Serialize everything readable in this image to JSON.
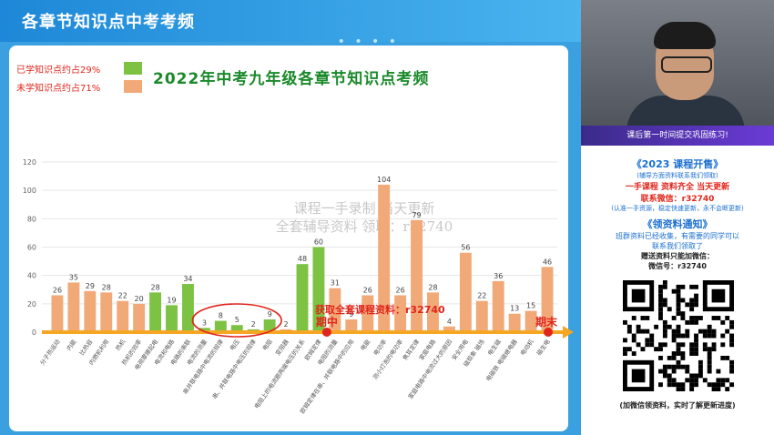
{
  "slide": {
    "title": "各章节知识点中考考频",
    "deco": "• • • •"
  },
  "legend": [
    {
      "label": "已学知识点约占29%",
      "color": "#7dc243"
    },
    {
      "label": "未学知识点约占71%",
      "color": "#f2a978"
    }
  ],
  "chart_data": {
    "type": "bar",
    "title": "2022年中考九年级各章节知识点考频",
    "ylim": [
      0,
      120
    ],
    "yticks": [
      0,
      20,
      40,
      60,
      80,
      100,
      120
    ],
    "grid": true,
    "categories": [
      "分子热运动",
      "内能",
      "比热容",
      "内燃机利用",
      "热机",
      "热机的效率",
      "电荷摩擦起电",
      "电流和电路",
      "电路的串联",
      "电流的测量",
      "串并联电路中电流的规律",
      "电压",
      "串、并联电路中电压的规律",
      "电阻",
      "变阻器",
      "电阻上的电流跟两端电压的关系",
      "欧姆定律",
      "电阻的测量",
      "欧姆定律在串、并联电路中的应用",
      "电能",
      "电功率",
      "测小灯泡的电功率",
      "焦耳定律",
      "家庭电路",
      "家庭电路中电流过大的原因",
      "安全用电",
      "磁现象 磁场",
      "电生磁",
      "电磁铁 电磁继电器",
      "电动机",
      "磁生电"
    ],
    "values": [
      26,
      35,
      29,
      28,
      22,
      20,
      28,
      19,
      34,
      3,
      8,
      5,
      2,
      9,
      2,
      48,
      60,
      31,
      9,
      26,
      104,
      26,
      79,
      28,
      4,
      56,
      22,
      36,
      13,
      15,
      46
    ],
    "learned": [
      false,
      false,
      false,
      false,
      false,
      false,
      true,
      true,
      true,
      true,
      true,
      true,
      true,
      true,
      false,
      true,
      true,
      false,
      false,
      false,
      false,
      false,
      false,
      false,
      false,
      false,
      false,
      false,
      false,
      false,
      false
    ],
    "colors": {
      "learned": "#7dc243",
      "unlearned": "#f2a978",
      "axis": "#f5a623",
      "annotation": "#e0261c"
    },
    "annotations": {
      "midterm": "期中",
      "final": "期末",
      "promo": "获取全套课程资料：r32740"
    }
  },
  "watermark": {
    "line1": "课程一手录制  当天更新",
    "line2": "全套辅导资料 领取：r32740"
  },
  "right_panel": {
    "video_caption": "课后第一时间提交巩固练习!",
    "promo_title": "《2023 课程开售》",
    "promo_sub": "(辅导方面资料联系我们领取)",
    "line_a": "一手课程 资料齐全 当天更新",
    "line_b": "联系微信：r32740",
    "line_c": "(认准一手资源，稳定快速更新，永不会断更新)",
    "notice_title": "《领资料通知》",
    "notice_1": "班群资料已经收集，有需要的同学可以",
    "notice_2": "联系我们领取了",
    "notice_3": "赠送资料只能加微信：",
    "notice_4": "微信号：r32740",
    "bottom": "(加微信领资料，实时了解更新进度)"
  }
}
